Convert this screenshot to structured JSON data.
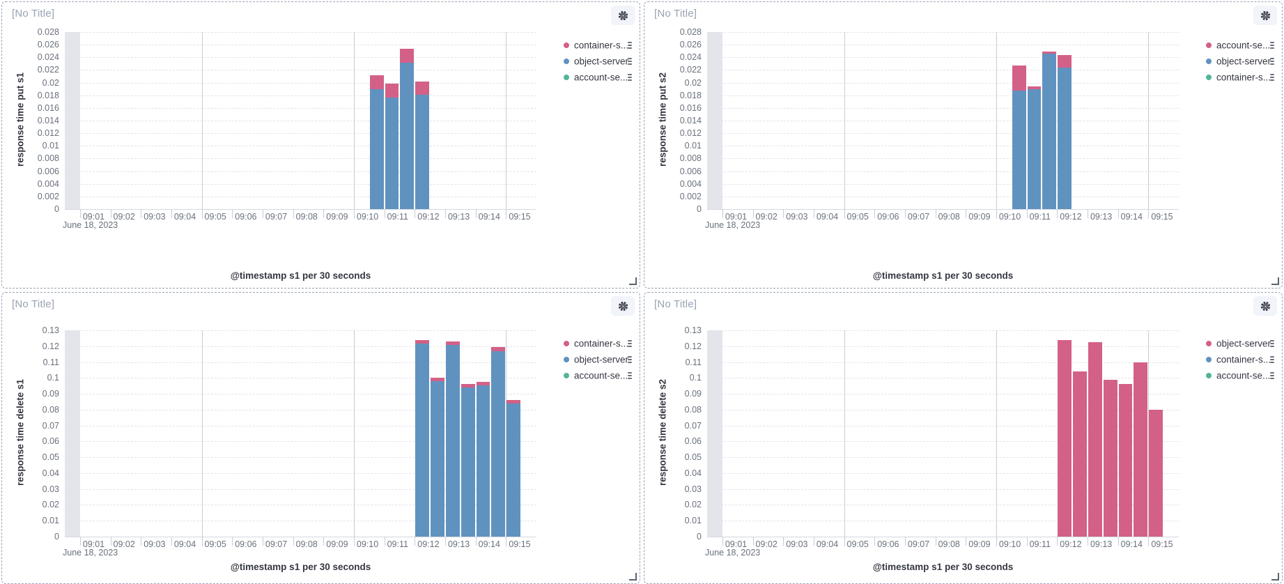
{
  "app": {
    "panel_title_placeholder": "[No Title]"
  },
  "colors": {
    "bar_pink": "#D36086",
    "bar_blue": "#6092C0",
    "legend_green": "#54B399",
    "panel_title_text": "#98a2b3",
    "axis_title_text": "#343741",
    "tick_text": "#69707d"
  },
  "icons": {
    "panel_settings": "gear-icon",
    "legend_item_menu": "kebab-dots-icon",
    "panel_resize": "corner-resize-icon"
  },
  "chart_data": [
    {
      "type": "bar",
      "panel_title": "[No Title]",
      "ylabel": "response time put s1",
      "xlabel": "@timestamp s1 per 30 seconds",
      "date_annotation": "June 18, 2023",
      "ylim": [
        0,
        0.028
      ],
      "y_tick_step": 0.002,
      "x_domain_minutes": [
        0.5,
        16
      ],
      "x_tick_labels": [
        "09:01",
        "09:02",
        "09:03",
        "09:04",
        "09:05",
        "09:06",
        "09:07",
        "09:08",
        "09:09",
        "09:10",
        "09:11",
        "09:12",
        "09:13",
        "09:14",
        "09:15"
      ],
      "v_gridline_minutes": [
        5,
        10,
        15
      ],
      "partial_band_minutes": [
        0.5,
        1
      ],
      "grid": {
        "horizontal": "dashed",
        "legend_position": "right"
      },
      "bucket_seconds": 30,
      "categories": [
        "09:10:30",
        "09:11:00",
        "09:11:30",
        "09:12:00"
      ],
      "category_start_minutes": [
        10.5,
        11,
        11.5,
        12
      ],
      "series": [
        {
          "name": "object-server",
          "color": "#6092C0",
          "values": [
            0.019,
            0.0176,
            0.0231,
            0.0181
          ]
        },
        {
          "name": "container-s...",
          "color": "#D36086",
          "values": [
            0.0022,
            0.0022,
            0.0022,
            0.0021
          ]
        }
      ],
      "legend": [
        {
          "label": "container-s...",
          "color": "#D36086"
        },
        {
          "label": "object-server",
          "color": "#6092C0"
        },
        {
          "label": "account-se...",
          "color": "#54B399"
        }
      ]
    },
    {
      "type": "bar",
      "panel_title": "[No Title]",
      "ylabel": "response time put s2",
      "xlabel": "@timestamp s1 per 30 seconds",
      "date_annotation": "June 18, 2023",
      "ylim": [
        0,
        0.028
      ],
      "y_tick_step": 0.002,
      "x_domain_minutes": [
        0.5,
        16
      ],
      "x_tick_labels": [
        "09:01",
        "09:02",
        "09:03",
        "09:04",
        "09:05",
        "09:06",
        "09:07",
        "09:08",
        "09:09",
        "09:10",
        "09:11",
        "09:12",
        "09:13",
        "09:14",
        "09:15"
      ],
      "v_gridline_minutes": [
        5,
        10,
        15
      ],
      "partial_band_minutes": [
        0.5,
        1
      ],
      "grid": {
        "horizontal": "dashed",
        "legend_position": "right"
      },
      "bucket_seconds": 30,
      "categories": [
        "09:10:30",
        "09:11:00",
        "09:11:30",
        "09:12:00"
      ],
      "category_start_minutes": [
        10.5,
        11,
        11.5,
        12
      ],
      "series": [
        {
          "name": "object-server",
          "color": "#6092C0",
          "values": [
            0.0187,
            0.019,
            0.0246,
            0.0224
          ]
        },
        {
          "name": "account-se...",
          "color": "#D36086",
          "values": [
            0.004,
            0.0004,
            0.0003,
            0.002
          ]
        }
      ],
      "legend": [
        {
          "label": "account-se...",
          "color": "#D36086"
        },
        {
          "label": "object-server",
          "color": "#6092C0"
        },
        {
          "label": "container-s...",
          "color": "#54B399"
        }
      ]
    },
    {
      "type": "bar",
      "panel_title": "[No Title]",
      "ylabel": "response time delete s1",
      "xlabel": "@timestamp s1 per 30 seconds",
      "date_annotation": "June 18, 2023",
      "ylim": [
        0,
        0.13
      ],
      "y_tick_step": 0.01,
      "x_domain_minutes": [
        0.5,
        16
      ],
      "x_tick_labels": [
        "09:01",
        "09:02",
        "09:03",
        "09:04",
        "09:05",
        "09:06",
        "09:07",
        "09:08",
        "09:09",
        "09:10",
        "09:11",
        "09:12",
        "09:13",
        "09:14",
        "09:15"
      ],
      "v_gridline_minutes": [
        5,
        10,
        15
      ],
      "partial_band_minutes": [
        0.5,
        1
      ],
      "grid": {
        "horizontal": "dashed",
        "legend_position": "right"
      },
      "bucket_seconds": 30,
      "categories": [
        "09:12:00",
        "09:12:30",
        "09:13:00",
        "09:13:30",
        "09:14:00",
        "09:14:30",
        "09:15:00"
      ],
      "category_start_minutes": [
        12,
        12.5,
        13,
        13.5,
        14,
        14.5,
        15
      ],
      "series": [
        {
          "name": "object-server",
          "color": "#6092C0",
          "values": [
            0.1215,
            0.0978,
            0.1206,
            0.0941,
            0.0954,
            0.117,
            0.0837
          ]
        },
        {
          "name": "container-s...",
          "color": "#D36086",
          "values": [
            0.0022,
            0.0022,
            0.0024,
            0.0022,
            0.0022,
            0.0026,
            0.0022
          ]
        }
      ],
      "legend": [
        {
          "label": "container-s...",
          "color": "#D36086"
        },
        {
          "label": "object-server",
          "color": "#6092C0"
        },
        {
          "label": "account-se...",
          "color": "#54B399"
        }
      ]
    },
    {
      "type": "bar",
      "panel_title": "[No Title]",
      "ylabel": "response time delete s2",
      "xlabel": "@timestamp s1 per 30 seconds",
      "date_annotation": "June 18, 2023",
      "ylim": [
        0,
        0.13
      ],
      "y_tick_step": 0.01,
      "x_domain_minutes": [
        0.5,
        16
      ],
      "x_tick_labels": [
        "09:01",
        "09:02",
        "09:03",
        "09:04",
        "09:05",
        "09:06",
        "09:07",
        "09:08",
        "09:09",
        "09:10",
        "09:11",
        "09:12",
        "09:13",
        "09:14",
        "09:15"
      ],
      "v_gridline_minutes": [
        5,
        10,
        15
      ],
      "partial_band_minutes": [
        0.5,
        1
      ],
      "grid": {
        "horizontal": "dashed",
        "legend_position": "right"
      },
      "bucket_seconds": 30,
      "categories": [
        "09:12:00",
        "09:12:30",
        "09:13:00",
        "09:13:30",
        "09:14:00",
        "09:14:30",
        "09:15:00"
      ],
      "category_start_minutes": [
        12,
        12.5,
        13,
        13.5,
        14,
        14.5,
        15
      ],
      "series": [
        {
          "name": "object-server",
          "color": "#D36086",
          "values": [
            0.124,
            0.104,
            0.1227,
            0.099,
            0.096,
            0.11,
            0.08
          ]
        }
      ],
      "legend": [
        {
          "label": "object-server",
          "color": "#D36086"
        },
        {
          "label": "container-s...",
          "color": "#6092C0"
        },
        {
          "label": "account-se...",
          "color": "#54B399"
        }
      ]
    }
  ]
}
